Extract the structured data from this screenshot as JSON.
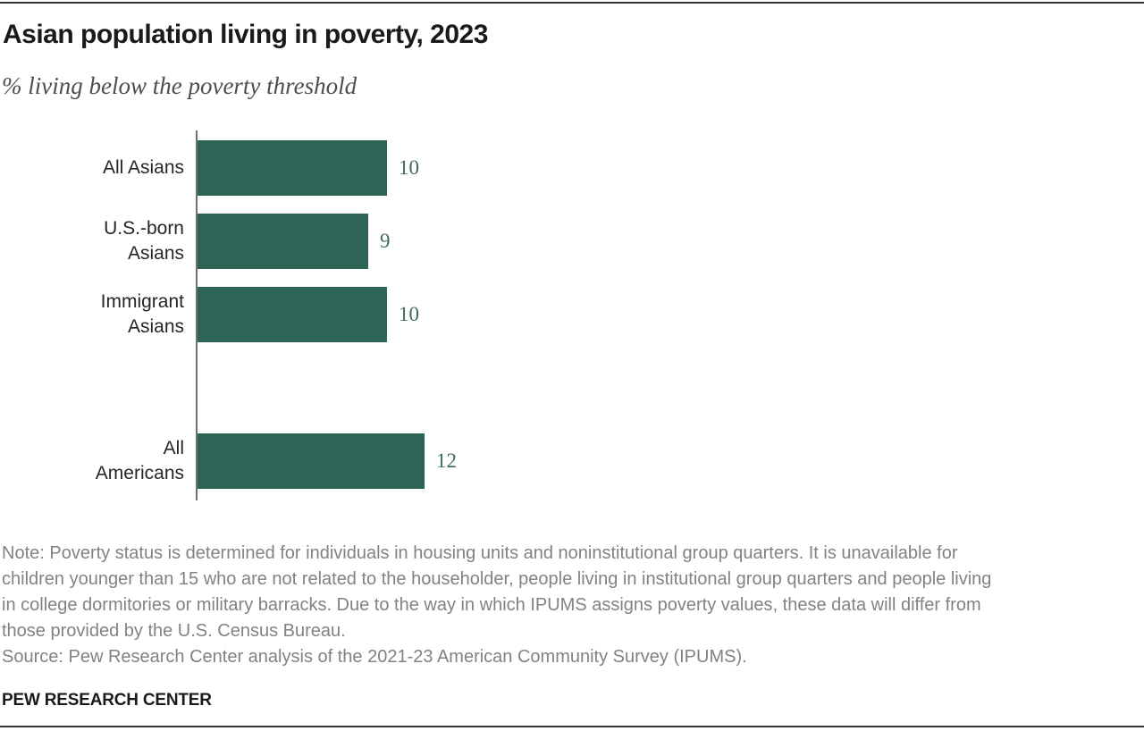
{
  "header": {
    "title": "Asian population living in poverty, 2023",
    "subtitle": "% living below the poverty threshold"
  },
  "chart_data": {
    "type": "bar",
    "orientation": "horizontal",
    "title": "Asian population living in poverty, 2023",
    "subtitle": "% living below the poverty threshold",
    "categories": [
      "All Asians",
      "U.S.-born Asians",
      "Immigrant Asians",
      "All Americans"
    ],
    "category_lines": [
      [
        "All Asians"
      ],
      [
        "U.S.-born",
        "Asians"
      ],
      [
        "Immigrant",
        "Asians"
      ],
      [
        "All",
        "Americans"
      ]
    ],
    "values": [
      10,
      9,
      10,
      12
    ],
    "value_labels": [
      "10",
      "9",
      "10",
      "12"
    ],
    "xlabel": "",
    "ylabel": "",
    "xlim": [
      0,
      12
    ],
    "grid": false,
    "value_label_position": "end-of-bar",
    "layout": {
      "row_slots": [
        0,
        1,
        2,
        4
      ],
      "gap_between_groups": "blank row between Immigrant Asians and All Americans"
    }
  },
  "footer": {
    "note_lines": [
      "Note: Poverty status is determined for individuals in housing units and noninstitutional group quarters. It is unavailable for",
      "children younger than 15 who are not related to the householder, people living in institutional group quarters and people living",
      "in college dormitories or military barracks. Due to the way in which IPUMS assigns poverty values, these data will differ from",
      "those provided by the U.S. Census Bureau."
    ],
    "source": "Source: Pew Research Center analysis of the 2021-23 American Community Survey (IPUMS).",
    "brand": "PEW RESEARCH CENTER"
  },
  "colors": {
    "bar": "#2e6456",
    "value_label": "#3b6c5f",
    "axis": "#707070",
    "rule": "#333333",
    "title_text": "#1a1a1a",
    "subtitle_text": "#4d4d4d",
    "category_label": "#262626",
    "note_text": "#828282"
  }
}
